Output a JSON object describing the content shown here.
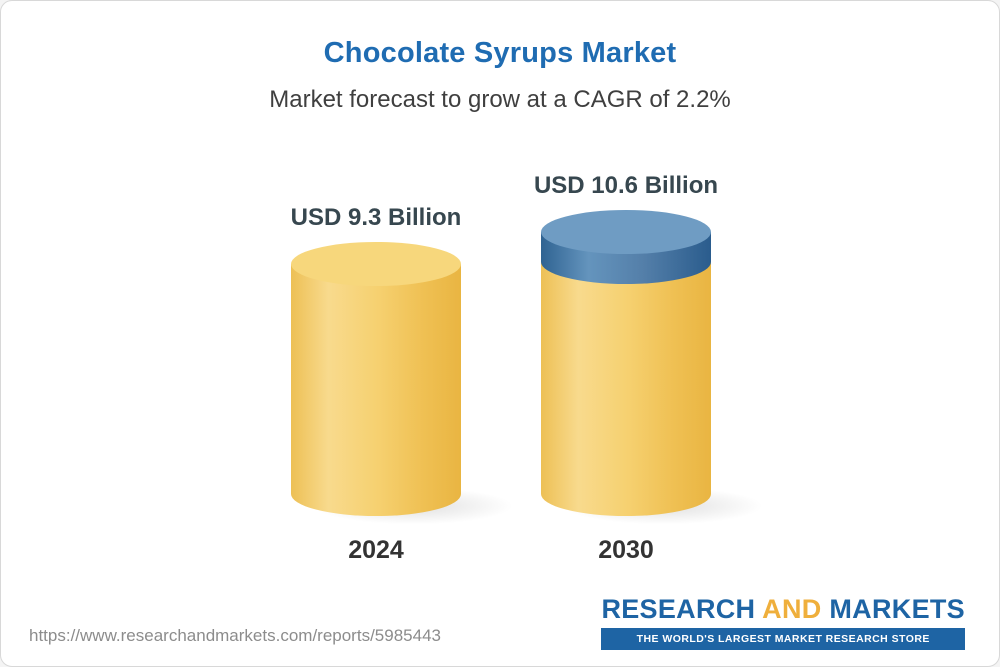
{
  "title": "Chocolate Syrups Market",
  "subtitle": "Market forecast to grow at a CAGR of 2.2%",
  "chart_data": {
    "type": "bar",
    "categories": [
      "2024",
      "2030"
    ],
    "values": [
      9.3,
      10.6
    ],
    "unit": "USD Billion",
    "value_labels": [
      "USD 9.3 Billion",
      "USD 10.6 Billion"
    ],
    "title": "Chocolate Syrups Market",
    "subtitle": "Market forecast to grow at a CAGR of 2.2%",
    "cagr_pct": 2.2,
    "bar_color": "#F2C75C",
    "increment_color": "#4C7FA8",
    "legend": "none",
    "grid": false
  },
  "bars": [
    {
      "value_label": "USD 9.3 Billion",
      "year": "2024"
    },
    {
      "value_label": "USD 10.6 Billion",
      "year": "2030"
    }
  ],
  "footer": {
    "url": "https://www.researchandmarkets.com/reports/5985443",
    "logo": {
      "research": "RESEARCH",
      "and": "AND",
      "markets": "MARKETS",
      "tagline": "THE WORLD'S LARGEST MARKET RESEARCH STORE"
    }
  }
}
